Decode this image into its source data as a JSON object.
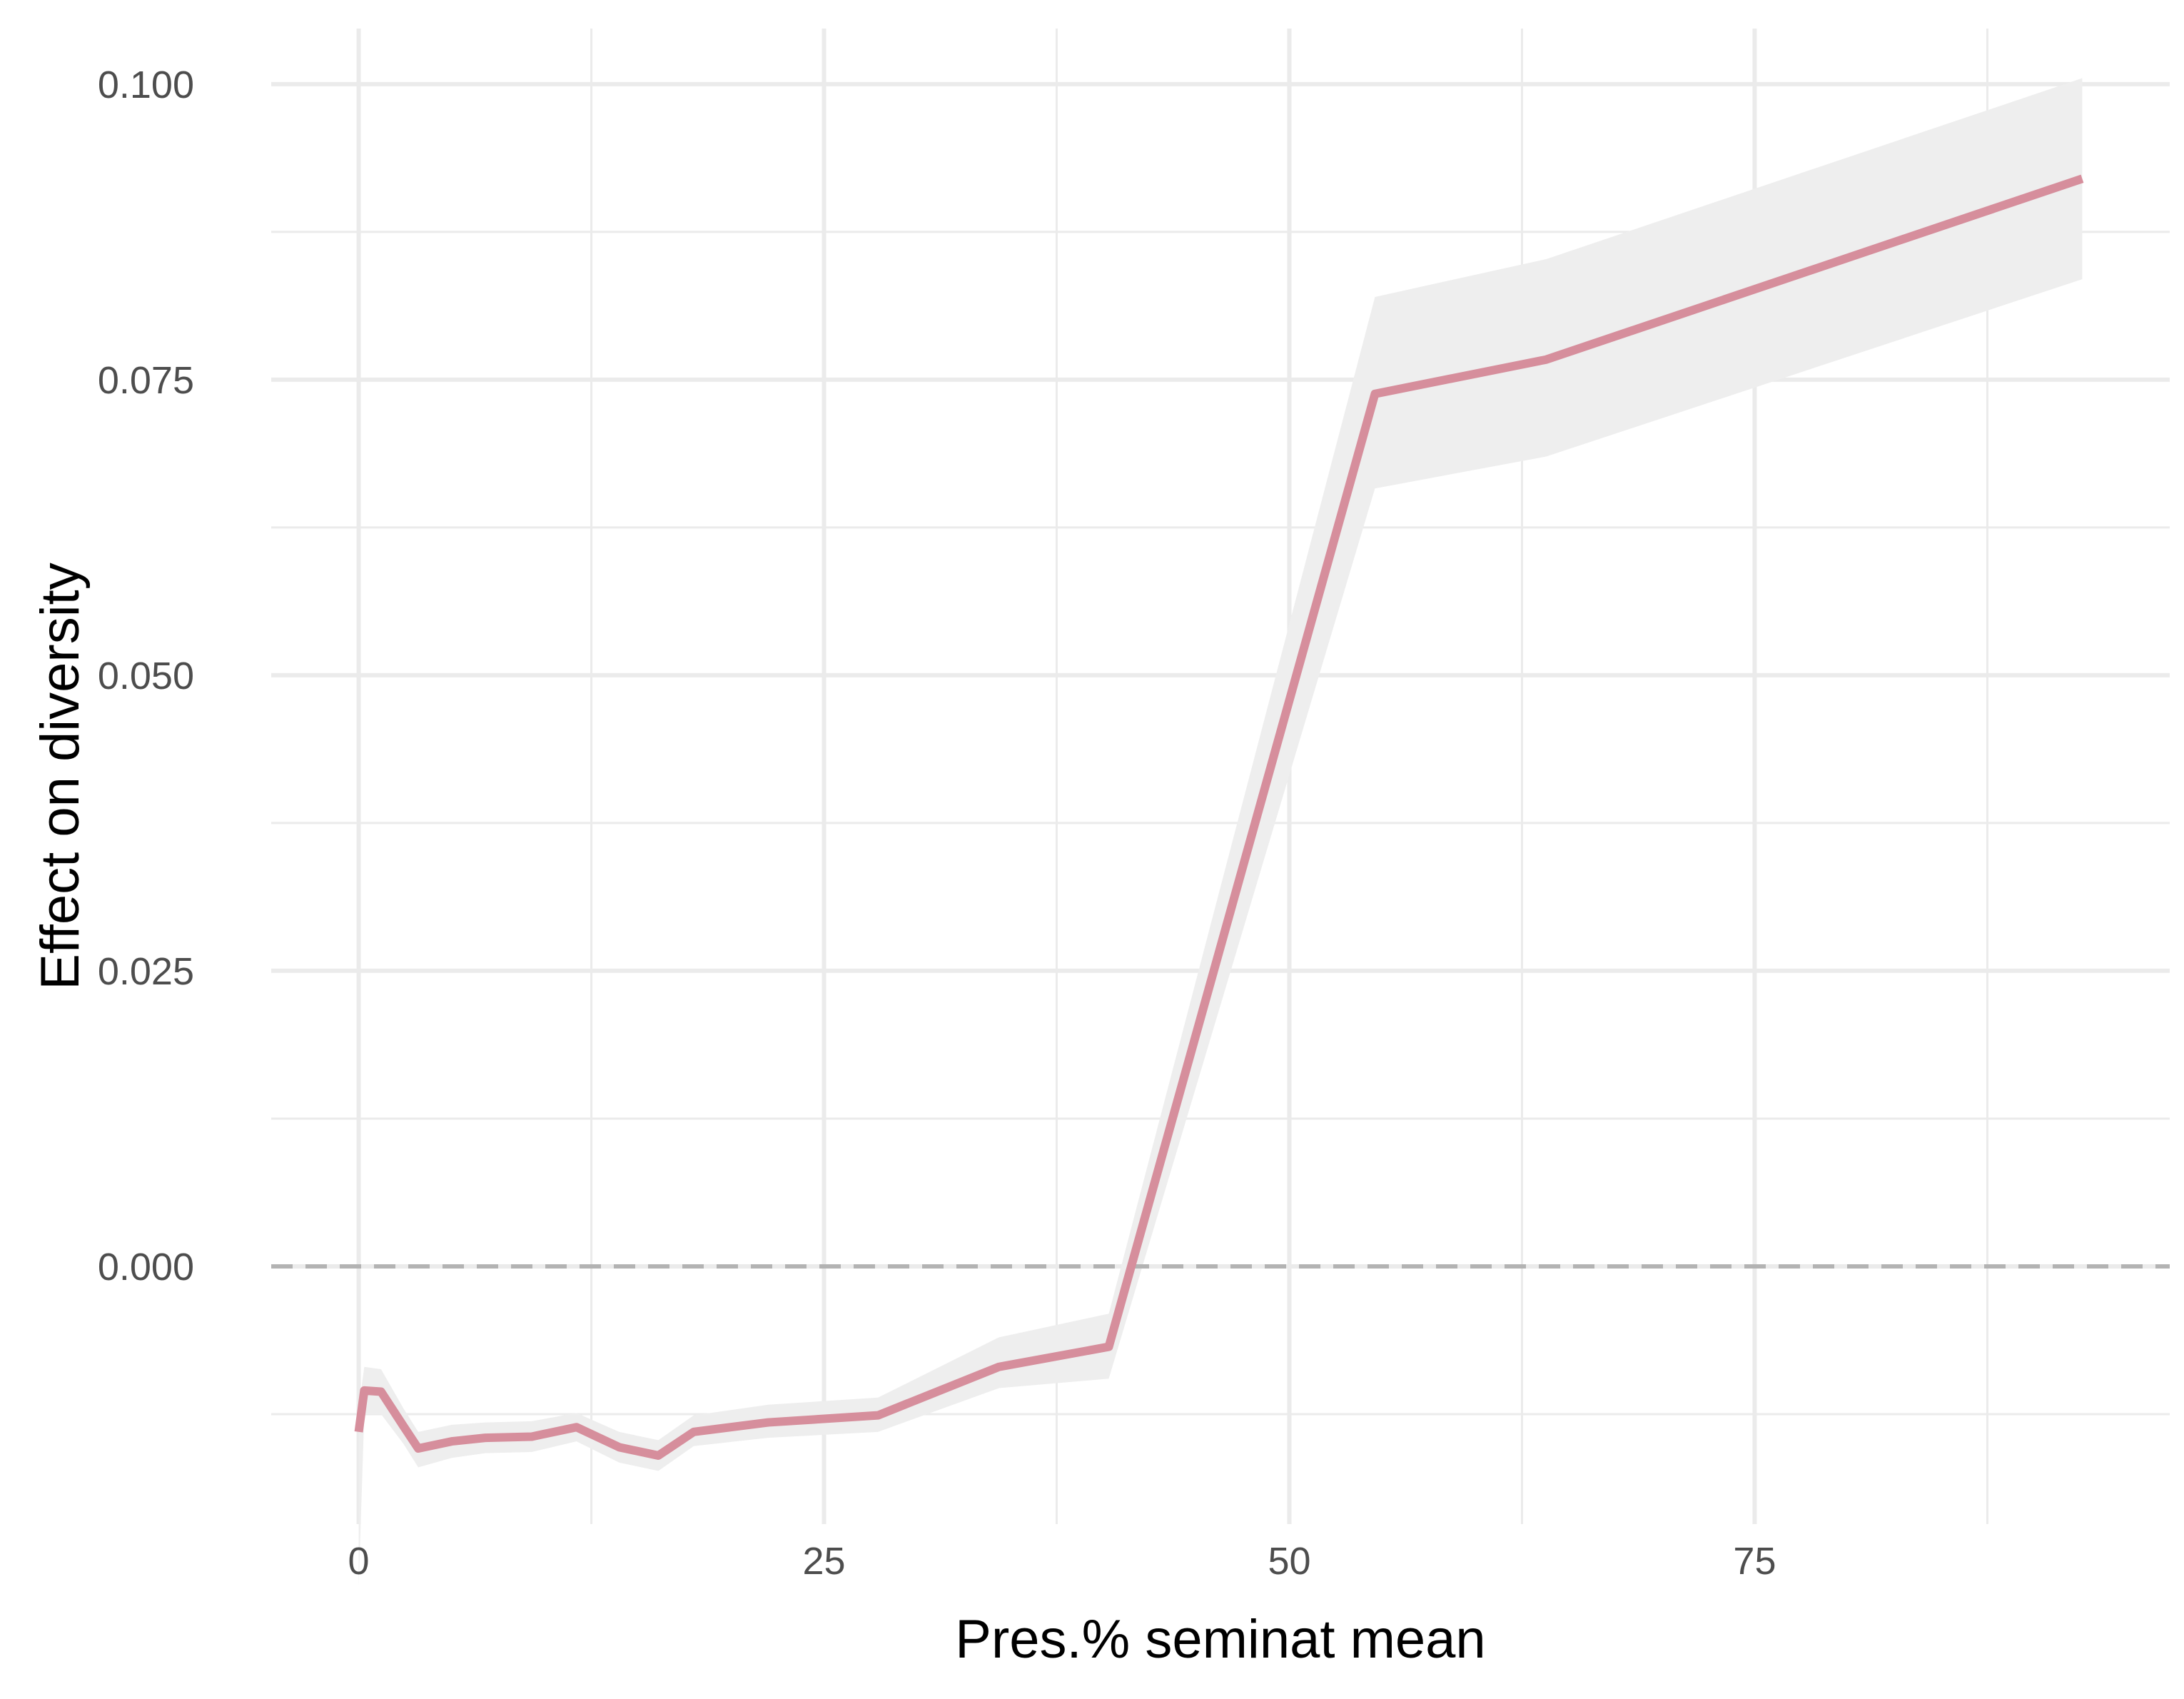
{
  "chart_data": {
    "type": "line",
    "xlabel": "Pres.% seminat mean",
    "ylabel": "Effect on diversity",
    "xlim": [
      -4.7,
      97.3
    ],
    "ylim": [
      -0.0218,
      0.1047
    ],
    "x_ticks": [
      0,
      25,
      50,
      75
    ],
    "x_tick_labels": [
      "0",
      "25",
      "50",
      "75"
    ],
    "y_ticks": [
      0.0,
      0.025,
      0.05,
      0.075,
      0.1
    ],
    "y_tick_labels": [
      "0.000",
      "0.025",
      "0.050",
      "0.075",
      "0.100"
    ],
    "reference_line": {
      "y": 0.0,
      "style": "dashed",
      "color": "#b3b3b3"
    },
    "grid": true,
    "series": [
      {
        "x": [
          0.0,
          0.3,
          1.2,
          2.4,
          3.2,
          5.0,
          6.8,
          9.3,
          11.7,
          14.0,
          16.1,
          18.0,
          22.0,
          27.9,
          34.4,
          40.3,
          54.6,
          63.8,
          92.6
        ],
        "y": [
          -0.014,
          -0.0105,
          -0.0106,
          -0.0135,
          -0.0154,
          -0.0148,
          -0.0145,
          -0.0144,
          -0.0136,
          -0.0153,
          -0.016,
          -0.014,
          -0.0132,
          -0.0126,
          -0.0085,
          -0.0068,
          0.0738,
          0.0767,
          0.092
        ],
        "lower": [
          -0.027,
          -0.0125,
          -0.0125,
          -0.015,
          -0.017,
          -0.0162,
          -0.0158,
          -0.0157,
          -0.0148,
          -0.0166,
          -0.0173,
          -0.0152,
          -0.0145,
          -0.014,
          -0.0103,
          -0.0095,
          0.0658,
          0.0685,
          0.0835
        ],
        "upper": [
          -0.012,
          -0.0085,
          -0.0087,
          -0.012,
          -0.014,
          -0.0134,
          -0.0132,
          -0.0131,
          -0.0124,
          -0.014,
          -0.0147,
          -0.0126,
          -0.0117,
          -0.0111,
          -0.006,
          -0.004,
          0.082,
          0.0852,
          0.1005
        ],
        "color": "#d68e9c",
        "band_color": "#eeeeee"
      }
    ]
  }
}
